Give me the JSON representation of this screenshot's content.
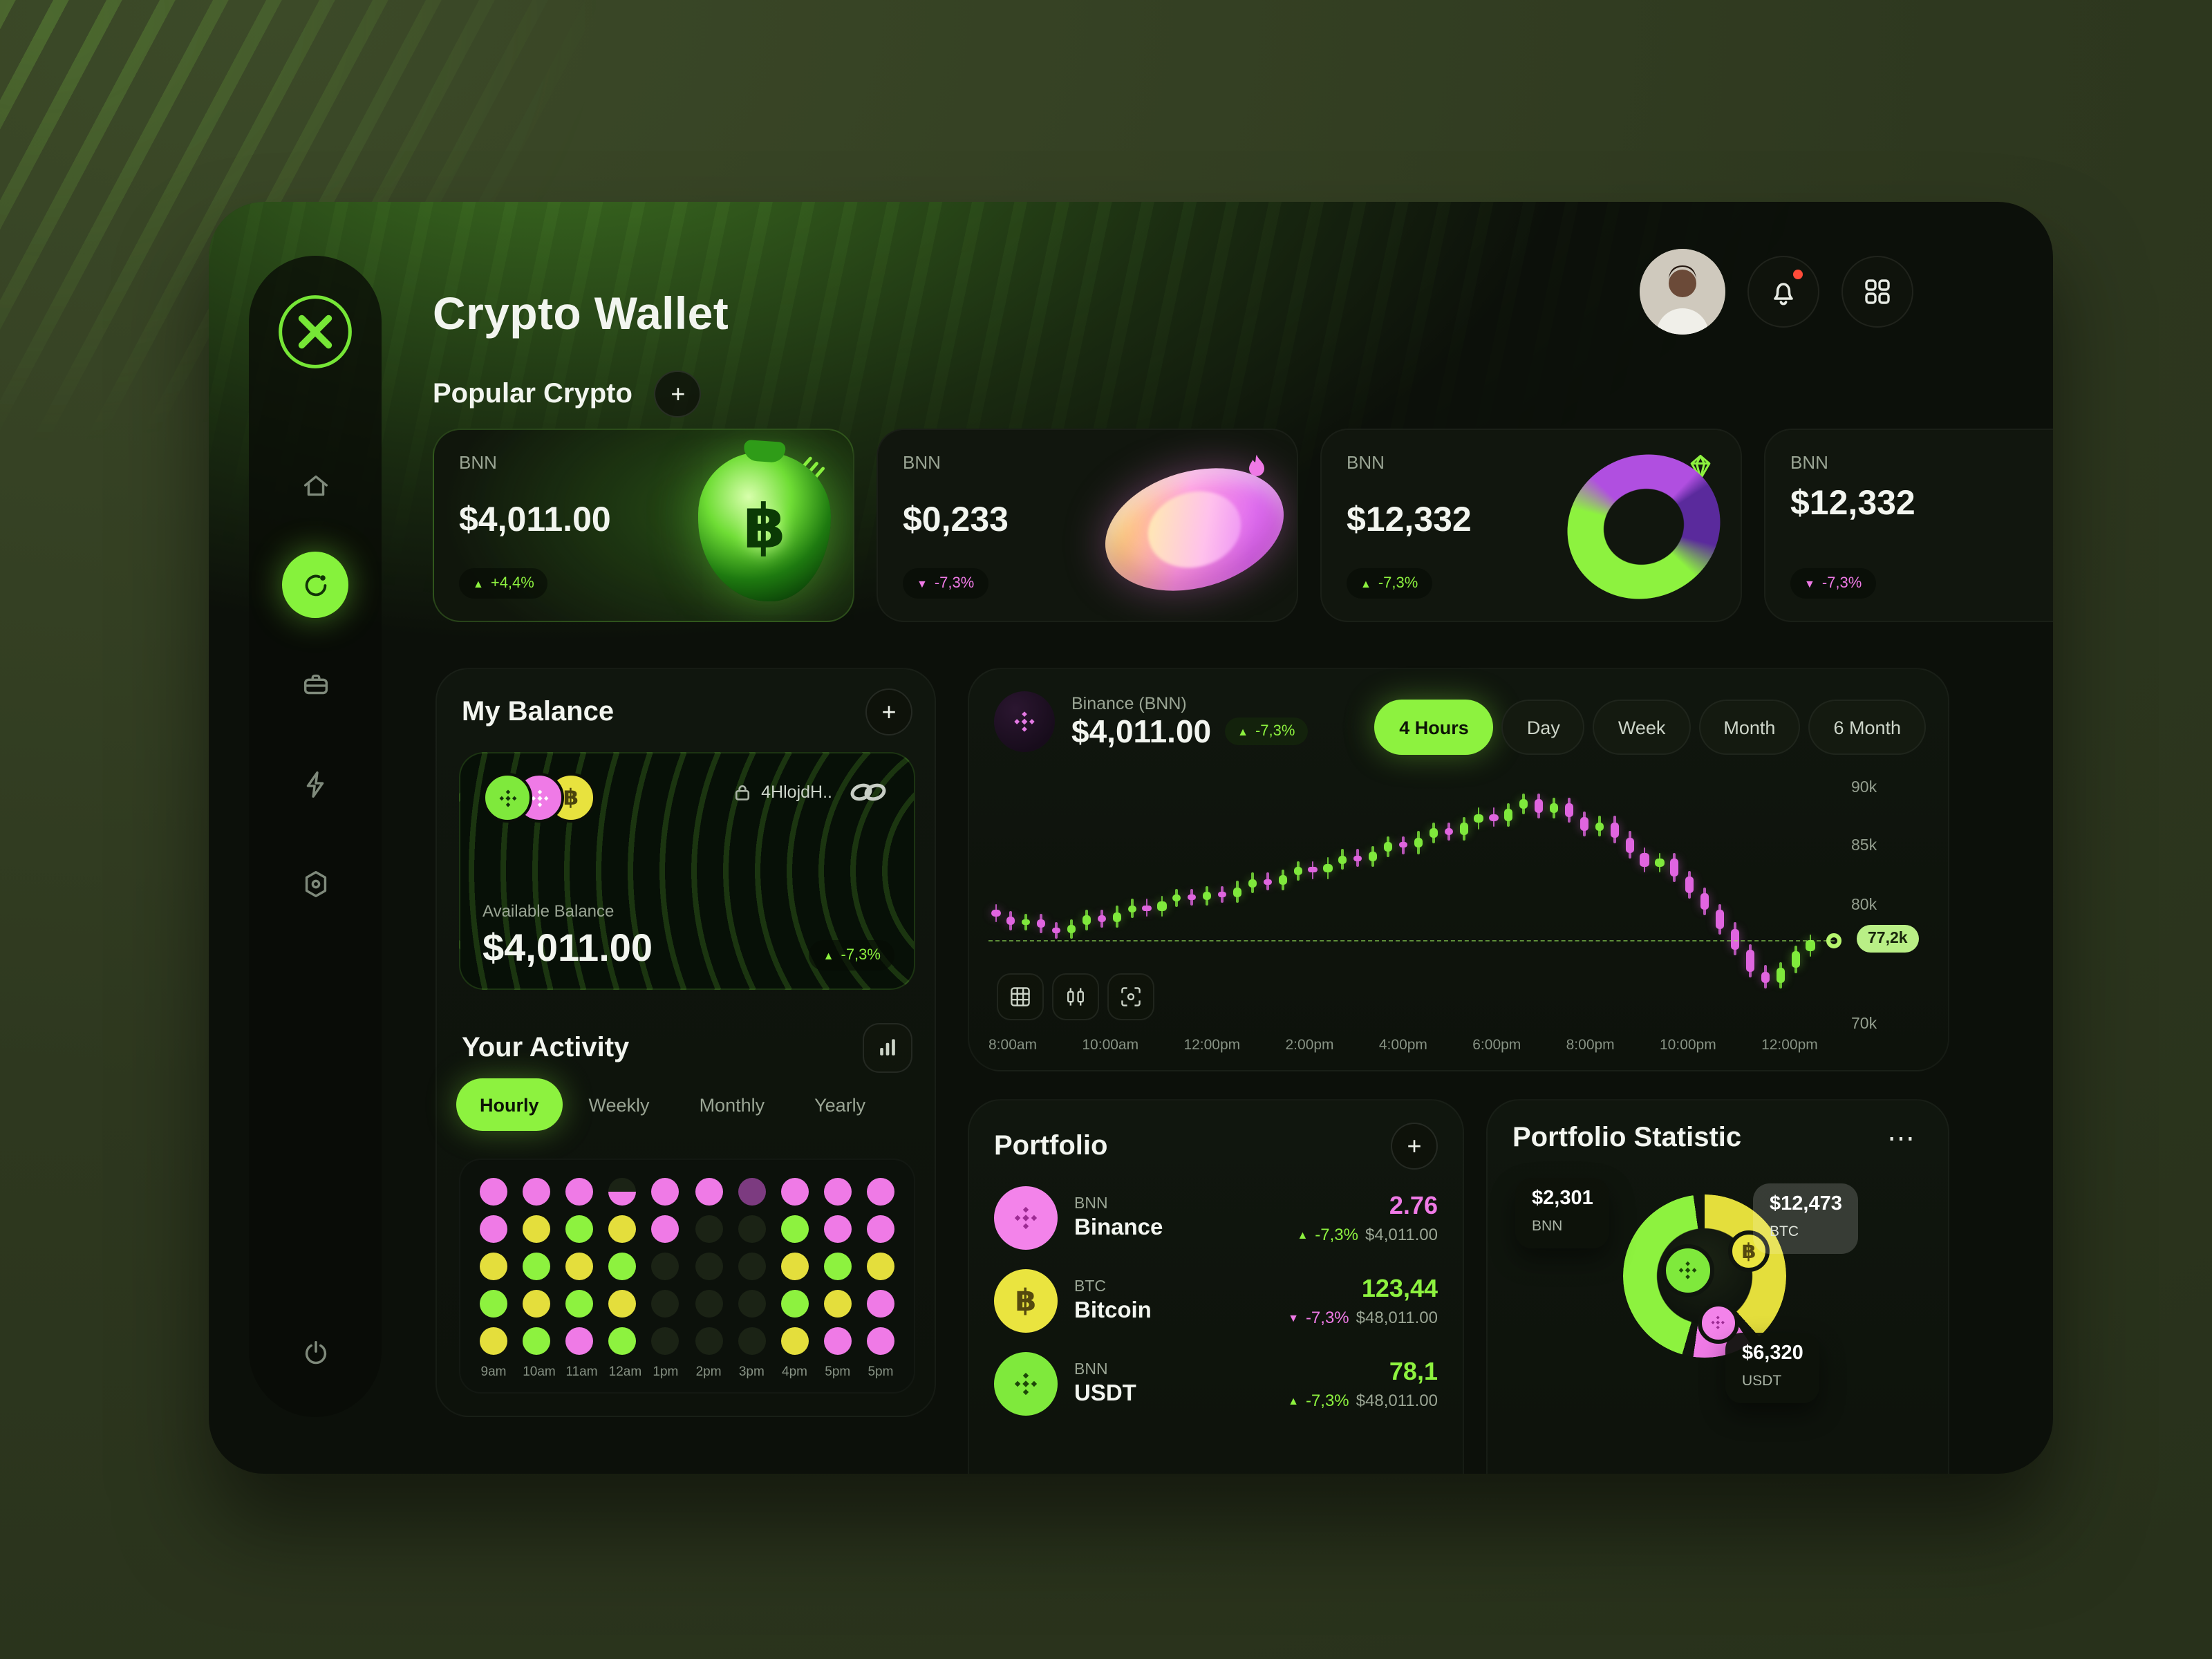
{
  "ui": {
    "plus": "+",
    "up_arrow": "▲",
    "down_arrow": "▼",
    "menu": "⋯"
  },
  "colors": {
    "accent_green": "#8DF23F",
    "pink": "#EF7AE6",
    "yellow": "#E4DE3C",
    "panel": "#0F140D"
  },
  "app": {
    "title": "Crypto Wallet"
  },
  "sidebar": {
    "items": [
      "home",
      "dashboard",
      "wallet",
      "energy",
      "settings",
      "logout"
    ],
    "active": "dashboard"
  },
  "popular": {
    "title": "Popular Crypto",
    "cards": [
      {
        "symbol": "BNN",
        "price": "$4,011.00",
        "change": "+4,4%",
        "dir": "up",
        "icon": "bars",
        "art": "money-bag"
      },
      {
        "symbol": "BNN",
        "price": "$0,233",
        "change": "-7,3%",
        "dir": "down",
        "icon": "flame",
        "art": "disc"
      },
      {
        "symbol": "BNN",
        "price": "$12,332",
        "change": "-7,3%",
        "dir": "up",
        "icon": "gem",
        "art": "ring"
      },
      {
        "symbol": "BNN",
        "price": "$12,332",
        "change": "-7,3%",
        "dir": "down",
        "icon": null,
        "art": null
      }
    ]
  },
  "balance": {
    "title": "My Balance",
    "address": "4HlojdH..",
    "available_label": "Available Balance",
    "amount": "$4,011.00",
    "change": "-7,3%",
    "dir": "up"
  },
  "activity": {
    "title": "Your Activity",
    "tabs": [
      "Hourly",
      "Weekly",
      "Monthly",
      "Yearly"
    ],
    "active_tab": "Hourly",
    "x_labels": [
      "9am",
      "10am",
      "11am",
      "12am",
      "1pm",
      "2pm",
      "3pm",
      "4pm",
      "5pm",
      "5pm"
    ],
    "palette": {
      "p": "#EF7AE6",
      "y": "#E4DE3C",
      "g": "#8DF23F",
      "d": "#1B2315",
      "v": "#7C3B80",
      "ph": "half-pink"
    },
    "grid": [
      [
        "p",
        "p",
        "p",
        "ph",
        "p",
        "p",
        "v",
        "p",
        "p",
        "p"
      ],
      [
        "p",
        "y",
        "g",
        "y",
        "p",
        "d",
        "d",
        "g",
        "p",
        "p"
      ],
      [
        "y",
        "g",
        "y",
        "g",
        "d",
        "d",
        "d",
        "y",
        "g",
        "y"
      ],
      [
        "g",
        "y",
        "g",
        "y",
        "d",
        "d",
        "d",
        "g",
        "y",
        "p"
      ],
      [
        "y",
        "g",
        "p",
        "g",
        "d",
        "d",
        "d",
        "y",
        "p",
        "p"
      ]
    ]
  },
  "market": {
    "coin": "Binance (BNN)",
    "price": "$4,011.00",
    "change": "-7,3%",
    "dir": "up",
    "ranges": [
      "4 Hours",
      "Day",
      "Week",
      "Month",
      "6 Month"
    ],
    "active_range": "4 Hours",
    "y_ticks": [
      "90k",
      "85k",
      "80k",
      "70k"
    ],
    "y_tick_values": [
      90,
      85,
      80,
      70
    ],
    "x_ticks": [
      "8:00am",
      "10:00am",
      "12:00pm",
      "2:00pm",
      "4:00pm",
      "6:00pm",
      "8:00pm",
      "10:00pm",
      "12:00pm"
    ],
    "current_price_label": "77,2k",
    "current_price_value": 77.2,
    "domain": [
      70,
      91
    ],
    "candles": [
      [
        79.8,
        79.2
      ],
      [
        79.2,
        78.5
      ],
      [
        78.5,
        79.0
      ],
      [
        79.0,
        78.3
      ],
      [
        78.3,
        77.8
      ],
      [
        77.8,
        78.5
      ],
      [
        78.5,
        79.3
      ],
      [
        79.3,
        78.8
      ],
      [
        78.8,
        79.6
      ],
      [
        79.6,
        80.2
      ],
      [
        80.2,
        79.7
      ],
      [
        79.7,
        80.5
      ],
      [
        80.5,
        81.1
      ],
      [
        81.1,
        80.6
      ],
      [
        80.6,
        81.3
      ],
      [
        81.3,
        80.9
      ],
      [
        80.9,
        81.7
      ],
      [
        81.7,
        82.4
      ],
      [
        82.4,
        81.9
      ],
      [
        81.9,
        82.7
      ],
      [
        82.7,
        83.4
      ],
      [
        83.4,
        82.9
      ],
      [
        82.9,
        83.7
      ],
      [
        83.7,
        84.4
      ],
      [
        84.4,
        83.9
      ],
      [
        83.9,
        84.7
      ],
      [
        84.7,
        85.5
      ],
      [
        85.5,
        85.0
      ],
      [
        85.0,
        85.9
      ],
      [
        85.9,
        86.7
      ],
      [
        86.7,
        86.1
      ],
      [
        86.1,
        87.1
      ],
      [
        87.1,
        87.9
      ],
      [
        87.9,
        87.3
      ],
      [
        87.3,
        88.3
      ],
      [
        88.3,
        89.1
      ],
      [
        89.1,
        88.0
      ],
      [
        88.0,
        88.8
      ],
      [
        88.8,
        87.6
      ],
      [
        87.6,
        86.5
      ],
      [
        86.5,
        87.2
      ],
      [
        87.2,
        85.9
      ],
      [
        85.9,
        84.6
      ],
      [
        84.6,
        83.4
      ],
      [
        83.4,
        84.1
      ],
      [
        84.1,
        82.6
      ],
      [
        82.6,
        81.2
      ],
      [
        81.2,
        79.8
      ],
      [
        79.8,
        78.2
      ],
      [
        78.2,
        76.4
      ],
      [
        76.4,
        74.6
      ],
      [
        74.6,
        73.6
      ],
      [
        73.6,
        74.9
      ],
      [
        74.9,
        76.3
      ],
      [
        76.3,
        77.2
      ]
    ]
  },
  "portfolio": {
    "title": "Portfolio",
    "rows": [
      {
        "symbol": "BNN",
        "name": "Binance",
        "amount": "2.76",
        "amount_color": "pink",
        "change": "-7,3%",
        "dir": "up",
        "value": "$4,011.00",
        "icon": "binance",
        "icon_bg": "pink"
      },
      {
        "symbol": "BTC",
        "name": "Bitcoin",
        "amount": "123,44",
        "amount_color": "green",
        "change": "-7,3%",
        "dir": "down",
        "value": "$48,011.00",
        "icon": "bitcoin",
        "icon_bg": "yellow"
      },
      {
        "symbol": "BNN",
        "name": "USDT",
        "amount": "78,1",
        "amount_color": "green",
        "change": "-7,3%",
        "dir": "up",
        "value": "$48,011.00",
        "icon": "binance",
        "icon_bg": "green"
      }
    ]
  },
  "statistic": {
    "title": "Portfolio Statistic",
    "labels": [
      {
        "value": "$2,301",
        "coin": "BNN"
      },
      {
        "value": "$12,473",
        "coin": "BTC"
      },
      {
        "value": "$6,320",
        "coin": "USDT"
      }
    ],
    "segments": [
      {
        "color": "#E4DE3C",
        "from": 0,
        "to": 138
      },
      {
        "color": "#EF7AE6",
        "from": 146,
        "to": 188
      },
      {
        "color": "#8DF23F",
        "from": 196,
        "to": 352
      }
    ]
  }
}
